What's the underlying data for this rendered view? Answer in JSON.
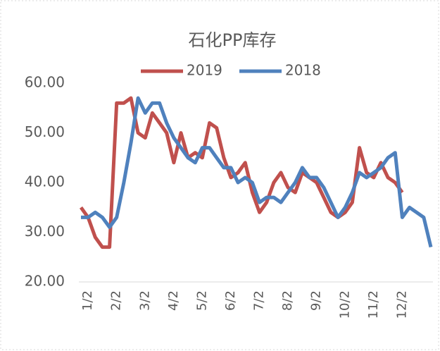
{
  "chart_data": {
    "type": "line",
    "title": "石化PP库存",
    "categories": [
      null,
      "1/2",
      null,
      null,
      null,
      "2/2",
      null,
      null,
      null,
      "3/2",
      null,
      null,
      null,
      "4/2",
      null,
      null,
      null,
      "5/2",
      null,
      null,
      null,
      "6/2",
      null,
      null,
      null,
      "7/2",
      null,
      null,
      null,
      "8/2",
      null,
      null,
      null,
      "9/2",
      null,
      null,
      null,
      "10/2",
      null,
      null,
      null,
      "11/2",
      null,
      null,
      null,
      "12/2",
      null,
      null,
      null,
      null
    ],
    "series": [
      {
        "name": "2019",
        "color": "#c0504d",
        "values": [
          35,
          33,
          29,
          27,
          27,
          56,
          56,
          57,
          50,
          49,
          54,
          52,
          50,
          44,
          50,
          45,
          46,
          45,
          52,
          51,
          45,
          41,
          42,
          44,
          38,
          34,
          36,
          40,
          42,
          39,
          38,
          42,
          41,
          40,
          37,
          34,
          33,
          34,
          36,
          47,
          42,
          41,
          44,
          41,
          40,
          38,
          null,
          null,
          null,
          null
        ]
      },
      {
        "name": "2018",
        "color": "#4f81bd",
        "values": [
          33,
          33,
          34,
          33,
          31,
          33,
          40,
          48,
          57,
          54,
          56,
          56,
          52,
          49,
          47,
          45,
          44,
          47,
          47,
          45,
          43,
          43,
          40,
          41,
          40,
          36,
          37,
          37,
          36,
          38,
          40,
          43,
          41,
          41,
          39,
          36,
          33,
          35,
          38,
          42,
          41,
          42,
          43,
          45,
          46,
          33,
          35,
          34,
          33,
          27
        ]
      }
    ],
    "ylim": [
      20,
      60
    ],
    "yticks": [
      {
        "value": 20,
        "label": "20.00"
      },
      {
        "value": 30,
        "label": "30.00"
      },
      {
        "value": 40,
        "label": "40.00"
      },
      {
        "value": 50,
        "label": "50.00"
      },
      {
        "value": 60,
        "label": "60.00"
      }
    ],
    "legend": "top"
  }
}
